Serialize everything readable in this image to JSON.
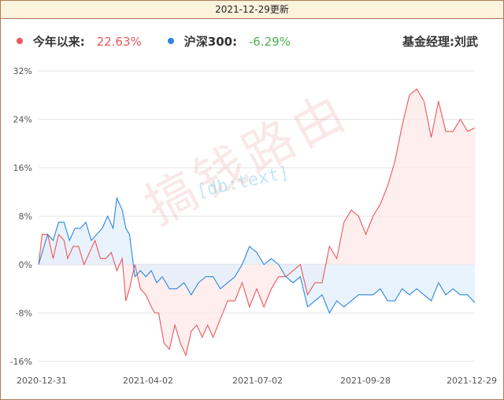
{
  "header": {
    "date": "2021-12-29更新"
  },
  "legend": {
    "fund_label": "今年以来:",
    "fund_value": "22.63%",
    "index_label": "沪深300:",
    "index_value": "-6.29%",
    "manager": "基金经理:刘武"
  },
  "watermark": {
    "main": "搞钱路由",
    "sub": "[db:text]"
  },
  "colors": {
    "fund": "#e8595d",
    "fund_fill": "#fde8e8",
    "index": "#2e86de",
    "index_fill": "#e2effc",
    "fund_value_text": "#e8595d",
    "index_value_text": "#4caf50"
  },
  "chart_data": {
    "type": "line",
    "ylim": [
      -16,
      32
    ],
    "yticks": [
      32,
      24,
      16,
      8,
      0,
      -8,
      -16
    ],
    "ytick_labels": [
      "32%",
      "24%",
      "16%",
      "8%",
      "0%",
      "-8%",
      "-16%"
    ],
    "xtick_labels": [
      "2020-12-31",
      "2021-04-02",
      "2021-07-02",
      "2021-09-28",
      "2021-12-29"
    ],
    "grid": true,
    "x_count": 240,
    "series": [
      {
        "name": "今年以来",
        "points": [
          [
            0,
            0
          ],
          [
            2,
            5
          ],
          [
            5,
            5
          ],
          [
            8,
            1
          ],
          [
            11,
            5
          ],
          [
            14,
            4
          ],
          [
            16,
            1
          ],
          [
            19,
            3
          ],
          [
            22,
            3
          ],
          [
            25,
            0
          ],
          [
            28,
            2
          ],
          [
            31,
            4
          ],
          [
            34,
            1
          ],
          [
            37,
            1
          ],
          [
            40,
            2
          ],
          [
            43,
            -1
          ],
          [
            46,
            1
          ],
          [
            48,
            -6
          ],
          [
            50,
            -4
          ],
          [
            53,
            0
          ],
          [
            56,
            -4
          ],
          [
            59,
            -5
          ],
          [
            62,
            -7
          ],
          [
            64,
            -8
          ],
          [
            66,
            -8
          ],
          [
            69,
            -13
          ],
          [
            72,
            -14
          ],
          [
            75,
            -10
          ],
          [
            78,
            -13
          ],
          [
            81,
            -15
          ],
          [
            84,
            -11
          ],
          [
            87,
            -10
          ],
          [
            90,
            -12
          ],
          [
            93,
            -10
          ],
          [
            96,
            -12
          ],
          [
            100,
            -9
          ],
          [
            104,
            -6
          ],
          [
            108,
            -6
          ],
          [
            112,
            -3
          ],
          [
            116,
            -7
          ],
          [
            120,
            -4
          ],
          [
            124,
            -7
          ],
          [
            128,
            -4
          ],
          [
            132,
            -2
          ],
          [
            136,
            -2
          ],
          [
            140,
            -1
          ],
          [
            144,
            0
          ],
          [
            148,
            -5
          ],
          [
            152,
            -3
          ],
          [
            156,
            -3
          ],
          [
            160,
            3
          ],
          [
            164,
            1
          ],
          [
            168,
            7
          ],
          [
            172,
            9
          ],
          [
            176,
            8
          ],
          [
            180,
            5
          ],
          [
            184,
            8
          ],
          [
            188,
            10
          ],
          [
            192,
            13
          ],
          [
            196,
            17
          ],
          [
            200,
            23
          ],
          [
            204,
            28
          ],
          [
            208,
            29
          ],
          [
            212,
            27
          ],
          [
            216,
            21
          ],
          [
            220,
            27
          ],
          [
            224,
            22
          ],
          [
            228,
            22
          ],
          [
            232,
            24
          ],
          [
            236,
            22
          ],
          [
            240,
            22.6
          ]
        ]
      },
      {
        "name": "沪深300",
        "points": [
          [
            0,
            0
          ],
          [
            2,
            2
          ],
          [
            5,
            5
          ],
          [
            8,
            4
          ],
          [
            11,
            7
          ],
          [
            14,
            7
          ],
          [
            17,
            4
          ],
          [
            20,
            6
          ],
          [
            23,
            6
          ],
          [
            26,
            7
          ],
          [
            29,
            4
          ],
          [
            32,
            5
          ],
          [
            35,
            6
          ],
          [
            38,
            8
          ],
          [
            41,
            6
          ],
          [
            43,
            11
          ],
          [
            46,
            9
          ],
          [
            48,
            6
          ],
          [
            50,
            5
          ],
          [
            53,
            -2
          ],
          [
            56,
            -1
          ],
          [
            59,
            -2
          ],
          [
            62,
            -1
          ],
          [
            65,
            -3
          ],
          [
            68,
            -2
          ],
          [
            72,
            -4
          ],
          [
            76,
            -4
          ],
          [
            80,
            -3
          ],
          [
            84,
            -5
          ],
          [
            88,
            -3
          ],
          [
            92,
            -2
          ],
          [
            96,
            -2
          ],
          [
            100,
            -4
          ],
          [
            104,
            -3
          ],
          [
            108,
            -2
          ],
          [
            112,
            0
          ],
          [
            116,
            3
          ],
          [
            120,
            2
          ],
          [
            124,
            0
          ],
          [
            128,
            1
          ],
          [
            132,
            0
          ],
          [
            136,
            -2
          ],
          [
            140,
            -3
          ],
          [
            144,
            -2
          ],
          [
            148,
            -7
          ],
          [
            152,
            -6
          ],
          [
            156,
            -5
          ],
          [
            160,
            -8
          ],
          [
            164,
            -6
          ],
          [
            168,
            -7
          ],
          [
            172,
            -6
          ],
          [
            176,
            -5
          ],
          [
            180,
            -5
          ],
          [
            184,
            -5
          ],
          [
            188,
            -4
          ],
          [
            192,
            -6
          ],
          [
            196,
            -6
          ],
          [
            200,
            -4
          ],
          [
            204,
            -5
          ],
          [
            208,
            -4
          ],
          [
            212,
            -5
          ],
          [
            216,
            -6
          ],
          [
            220,
            -3
          ],
          [
            224,
            -5
          ],
          [
            228,
            -4
          ],
          [
            232,
            -5
          ],
          [
            236,
            -5
          ],
          [
            240,
            -6.29
          ]
        ]
      }
    ]
  }
}
